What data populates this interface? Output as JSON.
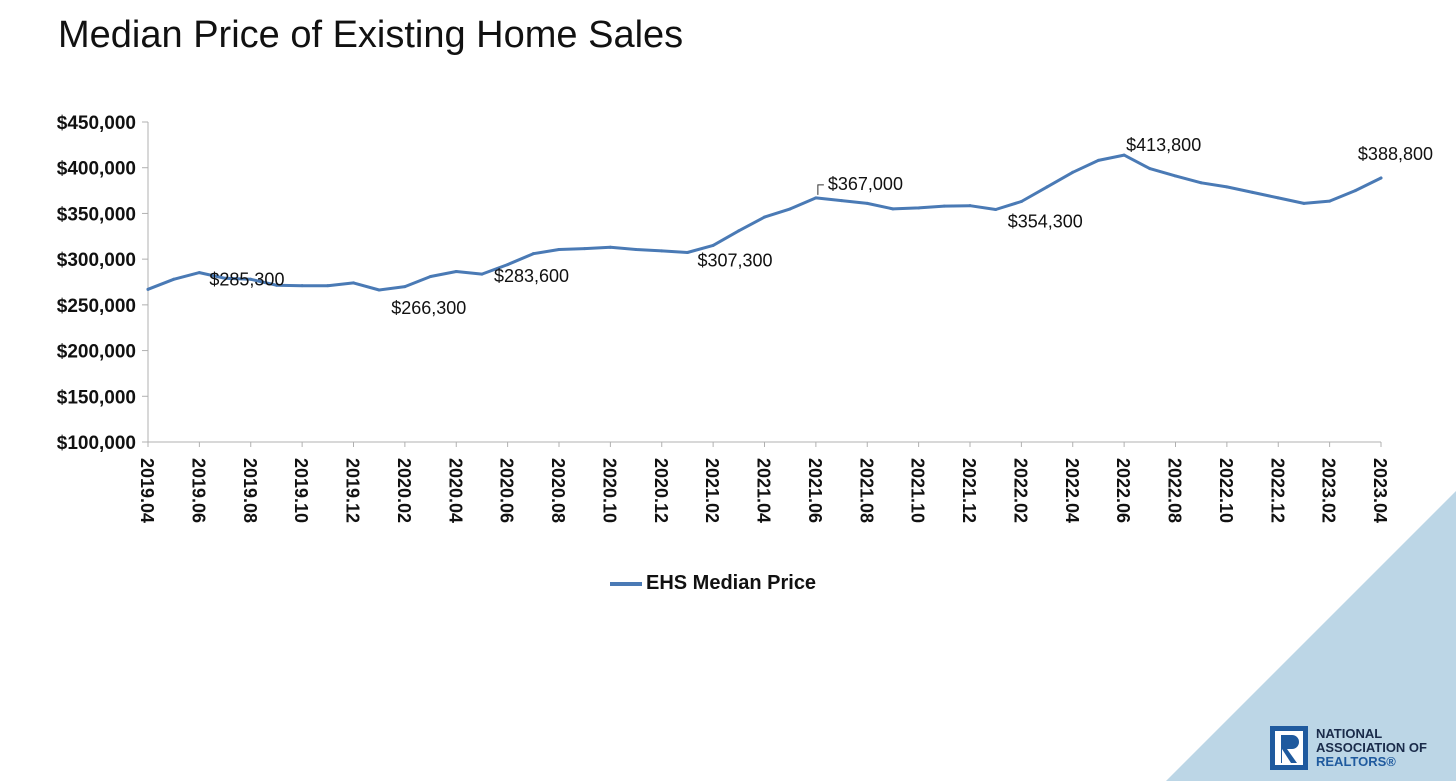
{
  "page": {
    "title": "Median Price of Existing Home Sales",
    "logo": {
      "name": "nar-logo",
      "lines": [
        "NATIONAL",
        "ASSOCIATION OF",
        "REALTORS®"
      ]
    },
    "colors": {
      "line": "#4a7ab5",
      "axis": "#b0b0b0",
      "corner": "#bcd6e6",
      "logo_blue": "#1f5a9e"
    }
  },
  "chart_data": {
    "type": "line",
    "title": "Median Price of Existing Home Sales",
    "xlabel": "",
    "ylabel": "",
    "ylim": [
      100000,
      450000
    ],
    "yticks": [
      100000,
      150000,
      200000,
      250000,
      300000,
      350000,
      400000,
      450000
    ],
    "ytick_labels": [
      "$100,000",
      "$150,000",
      "$200,000",
      "$250,000",
      "$300,000",
      "$350,000",
      "$400,000",
      "$450,000"
    ],
    "grid": false,
    "legend": "bottom",
    "x": [
      "2019.04",
      "2019.05",
      "2019.06",
      "2019.07",
      "2019.08",
      "2019.09",
      "2019.10",
      "2019.11",
      "2019.12",
      "2020.01",
      "2020.02",
      "2020.03",
      "2020.04",
      "2020.05",
      "2020.06",
      "2020.07",
      "2020.08",
      "2020.09",
      "2020.10",
      "2020.11",
      "2020.12",
      "2021.01",
      "2021.02",
      "2021.03",
      "2021.04",
      "2021.05",
      "2021.06",
      "2021.07",
      "2021.08",
      "2021.09",
      "2021.10",
      "2021.11",
      "2021.12",
      "2022.01",
      "2022.02",
      "2022.03",
      "2022.04",
      "2022.05",
      "2022.06",
      "2022.07",
      "2022.08",
      "2022.09",
      "2022.10",
      "2022.11",
      "2022.12",
      "2023.01",
      "2023.02",
      "2023.03",
      "2023.04"
    ],
    "x_tick_labels": [
      "2019.04",
      "2019.06",
      "2019.08",
      "2019.10",
      "2019.12",
      "2020.02",
      "2020.04",
      "2020.06",
      "2020.08",
      "2020.10",
      "2020.12",
      "2021.02",
      "2021.04",
      "2021.06",
      "2021.08",
      "2021.10",
      "2021.12",
      "2022.02",
      "2022.04",
      "2022.06",
      "2022.08",
      "2022.10",
      "2022.12",
      "2023.02",
      "2023.04"
    ],
    "series": [
      {
        "name": "EHS Median Price",
        "color": "#4a7ab5",
        "values": [
          267000,
          278000,
          285300,
          279000,
          278000,
          271500,
          271000,
          271000,
          274000,
          266300,
          270000,
          281000,
          286500,
          283600,
          294000,
          306000,
          310500,
          311500,
          313000,
          310500,
          309000,
          307300,
          315000,
          331000,
          346000,
          355000,
          367000,
          364000,
          361000,
          355000,
          356000,
          358000,
          358500,
          354300,
          363000,
          379000,
          395000,
          408000,
          413800,
          399000,
          391000,
          383500,
          379000,
          373000,
          367000,
          361000,
          363500,
          375000,
          388800
        ]
      }
    ],
    "annotations": [
      {
        "index": 2,
        "text": "$285,300"
      },
      {
        "index": 9,
        "text": "$266,300"
      },
      {
        "index": 13,
        "text": "$283,600"
      },
      {
        "index": 21,
        "text": "$307,300"
      },
      {
        "index": 26,
        "text": "$367,000"
      },
      {
        "index": 33,
        "text": "$354,300"
      },
      {
        "index": 38,
        "text": "$413,800"
      },
      {
        "index": 48,
        "text": "$388,800"
      }
    ]
  }
}
